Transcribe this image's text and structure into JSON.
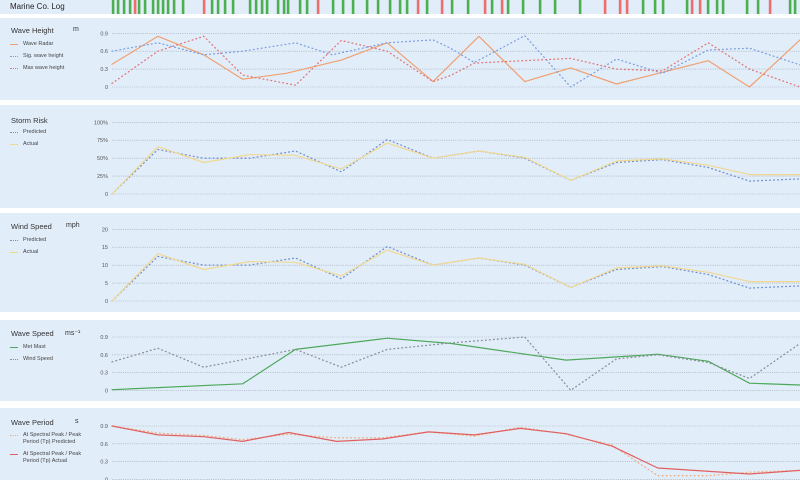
{
  "marine_log": {
    "label": "Marine Co. Log",
    "colors": {
      "ok": "#4caf50",
      "alert": "#ee6e6e"
    },
    "events": [
      {
        "pos": 113,
        "s": "ok"
      },
      {
        "pos": 118,
        "s": "ok"
      },
      {
        "pos": 124,
        "s": "ok"
      },
      {
        "pos": 130,
        "s": "ok"
      },
      {
        "pos": 135,
        "s": "alert"
      },
      {
        "pos": 139,
        "s": "ok"
      },
      {
        "pos": 145,
        "s": "ok"
      },
      {
        "pos": 153,
        "s": "ok"
      },
      {
        "pos": 158,
        "s": "ok"
      },
      {
        "pos": 163,
        "s": "ok"
      },
      {
        "pos": 168,
        "s": "ok"
      },
      {
        "pos": 174,
        "s": "ok"
      },
      {
        "pos": 183,
        "s": "ok"
      },
      {
        "pos": 204,
        "s": "alert"
      },
      {
        "pos": 212,
        "s": "ok"
      },
      {
        "pos": 218,
        "s": "ok"
      },
      {
        "pos": 225,
        "s": "ok"
      },
      {
        "pos": 233,
        "s": "ok"
      },
      {
        "pos": 250,
        "s": "ok"
      },
      {
        "pos": 256,
        "s": "ok"
      },
      {
        "pos": 262,
        "s": "ok"
      },
      {
        "pos": 267,
        "s": "ok"
      },
      {
        "pos": 278,
        "s": "ok"
      },
      {
        "pos": 284,
        "s": "ok"
      },
      {
        "pos": 288,
        "s": "ok"
      },
      {
        "pos": 300,
        "s": "ok"
      },
      {
        "pos": 307,
        "s": "ok"
      },
      {
        "pos": 318,
        "s": "alert"
      },
      {
        "pos": 333,
        "s": "ok"
      },
      {
        "pos": 343,
        "s": "ok"
      },
      {
        "pos": 353,
        "s": "ok"
      },
      {
        "pos": 367,
        "s": "ok"
      },
      {
        "pos": 378,
        "s": "ok"
      },
      {
        "pos": 390,
        "s": "ok"
      },
      {
        "pos": 400,
        "s": "ok"
      },
      {
        "pos": 407,
        "s": "ok"
      },
      {
        "pos": 418,
        "s": "alert"
      },
      {
        "pos": 427,
        "s": "ok"
      },
      {
        "pos": 442,
        "s": "alert"
      },
      {
        "pos": 452,
        "s": "ok"
      },
      {
        "pos": 468,
        "s": "ok"
      },
      {
        "pos": 485,
        "s": "alert"
      },
      {
        "pos": 492,
        "s": "ok"
      },
      {
        "pos": 502,
        "s": "alert"
      },
      {
        "pos": 508,
        "s": "ok"
      },
      {
        "pos": 523,
        "s": "ok"
      },
      {
        "pos": 540,
        "s": "ok"
      },
      {
        "pos": 555,
        "s": "ok"
      },
      {
        "pos": 580,
        "s": "ok"
      },
      {
        "pos": 605,
        "s": "alert"
      },
      {
        "pos": 620,
        "s": "alert"
      },
      {
        "pos": 627,
        "s": "alert"
      },
      {
        "pos": 643,
        "s": "ok"
      },
      {
        "pos": 655,
        "s": "ok"
      },
      {
        "pos": 663,
        "s": "ok"
      },
      {
        "pos": 687,
        "s": "ok"
      },
      {
        "pos": 692,
        "s": "alert"
      },
      {
        "pos": 700,
        "s": "alert"
      },
      {
        "pos": 708,
        "s": "ok"
      },
      {
        "pos": 717,
        "s": "ok"
      },
      {
        "pos": 723,
        "s": "ok"
      },
      {
        "pos": 747,
        "s": "ok"
      },
      {
        "pos": 758,
        "s": "ok"
      },
      {
        "pos": 770,
        "s": "alert"
      },
      {
        "pos": 790,
        "s": "ok"
      },
      {
        "pos": 795,
        "s": "ok"
      }
    ]
  },
  "chart_data": [
    {
      "id": "wave-height",
      "type": "line",
      "title": "Wave Height",
      "ylabel": "m",
      "ylim": [
        0,
        0.9
      ],
      "xlim": [
        0,
        15
      ],
      "yticks": [
        "0",
        "0.3",
        "0.6",
        "0.9"
      ],
      "ytick_values": [
        0,
        0.3,
        0.6,
        0.9
      ],
      "grid": true,
      "legend": "left",
      "series": [
        {
          "name": "Wave Radar",
          "color": "#f0a070",
          "dash": false,
          "points": [
            [
              0,
              0.38
            ],
            [
              1,
              0.85
            ],
            [
              2,
              0.54
            ],
            [
              2.85,
              0.13
            ],
            [
              3.8,
              0.23
            ],
            [
              5,
              0.45
            ],
            [
              6,
              0.74
            ],
            [
              7,
              0.09
            ],
            [
              8,
              0.85
            ],
            [
              9,
              0.09
            ],
            [
              10,
              0.32
            ],
            [
              11,
              0.05
            ],
            [
              13,
              0.44
            ],
            [
              13.9,
              0
            ],
            [
              15,
              0.79
            ]
          ]
        },
        {
          "name": "Sig. wave height",
          "color": "#7b9fe0",
          "dash": true,
          "points": [
            [
              0,
              0.6
            ],
            [
              1,
              0.74
            ],
            [
              2,
              0.54
            ],
            [
              2.85,
              0.6
            ],
            [
              4,
              0.74
            ],
            [
              4.8,
              0.54
            ],
            [
              6,
              0.74
            ],
            [
              7,
              0.79
            ],
            [
              7.4,
              0.64
            ],
            [
              7.9,
              0.41
            ],
            [
              9,
              0.86
            ],
            [
              10,
              0
            ],
            [
              11,
              0.47
            ],
            [
              12,
              0.23
            ],
            [
              13,
              0.62
            ],
            [
              13.9,
              0.65
            ],
            [
              15,
              0.37
            ]
          ]
        },
        {
          "name": "Max wave height",
          "color": "#e07878",
          "dash": true,
          "points": [
            [
              0,
              0.06
            ],
            [
              1,
              0.6
            ],
            [
              2,
              0.85
            ],
            [
              2.85,
              0.2
            ],
            [
              4,
              0.03
            ],
            [
              5,
              0.78
            ],
            [
              6,
              0.6
            ],
            [
              7,
              0.09
            ],
            [
              7.4,
              0.2
            ],
            [
              7.9,
              0.4
            ],
            [
              10,
              0.48
            ],
            [
              11,
              0.3
            ],
            [
              12,
              0.27
            ],
            [
              13,
              0.74
            ],
            [
              13.9,
              0.3
            ],
            [
              15,
              0
            ]
          ]
        }
      ]
    },
    {
      "id": "storm-risk",
      "type": "line",
      "title": "Storm Risk",
      "ylabel": "",
      "ylim": [
        0,
        100
      ],
      "xlim": [
        0,
        15
      ],
      "yticks": [
        "0",
        "25%",
        "50%",
        "75%",
        "100%"
      ],
      "ytick_values": [
        0,
        25,
        50,
        75,
        100
      ],
      "grid": true,
      "legend": "left",
      "series": [
        {
          "name": "Predicted",
          "color": "#7090d0",
          "dash": true,
          "points": [
            [
              0,
              0
            ],
            [
              1,
              62
            ],
            [
              2,
              50
            ],
            [
              3,
              50
            ],
            [
              4,
              60
            ],
            [
              5,
              31
            ],
            [
              6,
              76
            ],
            [
              7,
              50
            ],
            [
              8,
              60
            ],
            [
              9,
              50
            ],
            [
              10,
              19
            ],
            [
              11,
              44
            ],
            [
              12,
              48
            ],
            [
              13,
              37
            ],
            [
              13.9,
              18
            ],
            [
              15,
              21
            ]
          ]
        },
        {
          "name": "Actual",
          "color": "#f0d890",
          "dash": false,
          "points": [
            [
              0,
              0
            ],
            [
              1,
              66
            ],
            [
              2,
              44
            ],
            [
              3,
              55
            ],
            [
              4,
              54
            ],
            [
              5,
              35
            ],
            [
              6,
              71
            ],
            [
              7,
              50
            ],
            [
              8,
              60
            ],
            [
              9,
              51
            ],
            [
              10,
              19
            ],
            [
              11,
              46
            ],
            [
              12,
              49
            ],
            [
              13,
              40
            ],
            [
              13.9,
              27
            ],
            [
              15,
              27
            ]
          ]
        }
      ]
    },
    {
      "id": "wind-speed",
      "type": "line",
      "title": "Wind Speed",
      "ylabel": "mph",
      "ylim": [
        0,
        20
      ],
      "xlim": [
        0,
        15
      ],
      "yticks": [
        "0",
        "5",
        "10",
        "15",
        "20"
      ],
      "ytick_values": [
        0,
        5,
        10,
        15,
        20
      ],
      "grid": true,
      "legend": "left",
      "series": [
        {
          "name": "Predicted",
          "color": "#7090d0",
          "dash": true,
          "points": [
            [
              0,
              0
            ],
            [
              1,
              12.4
            ],
            [
              2,
              10
            ],
            [
              3,
              10
            ],
            [
              4,
              12
            ],
            [
              5,
              6.2
            ],
            [
              6,
              15.2
            ],
            [
              7,
              10
            ],
            [
              8,
              12
            ],
            [
              9,
              10
            ],
            [
              10,
              3.8
            ],
            [
              11,
              8.8
            ],
            [
              12,
              9.6
            ],
            [
              13,
              7.4
            ],
            [
              13.9,
              3.6
            ],
            [
              15,
              4.2
            ]
          ]
        },
        {
          "name": "Actual",
          "color": "#f0d890",
          "dash": false,
          "points": [
            [
              0,
              0
            ],
            [
              1,
              13.2
            ],
            [
              2,
              8.8
            ],
            [
              3,
              11
            ],
            [
              4,
              10.8
            ],
            [
              5,
              7
            ],
            [
              6,
              14.2
            ],
            [
              7,
              10
            ],
            [
              8,
              12
            ],
            [
              9,
              10.2
            ],
            [
              10,
              3.8
            ],
            [
              11,
              9.2
            ],
            [
              12,
              9.8
            ],
            [
              13,
              8
            ],
            [
              13.9,
              5.4
            ],
            [
              15,
              5.4
            ]
          ]
        }
      ]
    },
    {
      "id": "wave-speed",
      "type": "line",
      "title": "Wave Speed",
      "ylabel": "ms⁻¹",
      "ylim": [
        0,
        0.9
      ],
      "xlim": [
        0,
        15
      ],
      "yticks": [
        "0",
        "0.3",
        "0.6",
        "0.9"
      ],
      "ytick_values": [
        0,
        0.3,
        0.6,
        0.9
      ],
      "grid": true,
      "legend": "left",
      "series": [
        {
          "name": "Met Mast",
          "color": "#4ea85c",
          "dash": false,
          "points": [
            [
              0,
              0.01
            ],
            [
              2.85,
              0.11
            ],
            [
              4,
              0.69
            ],
            [
              6,
              0.88
            ],
            [
              7.4,
              0.79
            ],
            [
              9.9,
              0.51
            ],
            [
              11.9,
              0.61
            ],
            [
              13,
              0.49
            ],
            [
              13.9,
              0.12
            ],
            [
              15,
              0.09
            ]
          ]
        },
        {
          "name": "Wind Speed",
          "color": "#8a8f99",
          "dash": true,
          "points": [
            [
              0,
              0.48
            ],
            [
              1,
              0.71
            ],
            [
              2,
              0.39
            ],
            [
              4,
              0.69
            ],
            [
              5,
              0.39
            ],
            [
              6,
              0.69
            ],
            [
              7.4,
              0.8
            ],
            [
              9,
              0.9
            ],
            [
              10,
              0
            ],
            [
              11,
              0.53
            ],
            [
              11.9,
              0.6
            ],
            [
              13,
              0.47
            ],
            [
              13.9,
              0.2
            ],
            [
              15,
              0.79
            ]
          ]
        }
      ]
    },
    {
      "id": "wave-period",
      "type": "line",
      "title": "Wave Period",
      "ylabel": "s",
      "ylim": [
        0,
        0.9
      ],
      "xlim": [
        0,
        15
      ],
      "yticks": [
        "0",
        "0.3",
        "0.6",
        "0.9"
      ],
      "ytick_values": [
        0,
        0.3,
        0.6,
        0.9
      ],
      "grid": true,
      "legend": "left",
      "series": [
        {
          "name": "At Spectral Peak / Peak Period  (Tp) Predicted",
          "color": "#f0b080",
          "dash": true,
          "points": [
            [
              0,
              0.9
            ],
            [
              1,
              0.78
            ],
            [
              2,
              0.74
            ],
            [
              2.85,
              0.67
            ],
            [
              3.85,
              0.76
            ],
            [
              4.9,
              0.7
            ],
            [
              5.9,
              0.7
            ],
            [
              6.9,
              0.8
            ],
            [
              7.9,
              0.73
            ],
            [
              8.9,
              0.88
            ],
            [
              9.9,
              0.76
            ],
            [
              10.9,
              0.58
            ],
            [
              11.9,
              0.06
            ],
            [
              13,
              0.06
            ],
            [
              13.9,
              0.12
            ],
            [
              15,
              0.15
            ]
          ]
        },
        {
          "name": "At Spectral Peak / Peak Period  (Tp) Actual",
          "color": "#e06060",
          "dash": false,
          "points": [
            [
              0,
              0.9
            ],
            [
              1,
              0.75
            ],
            [
              2,
              0.72
            ],
            [
              2.85,
              0.64
            ],
            [
              3.85,
              0.79
            ],
            [
              4.9,
              0.64
            ],
            [
              5.9,
              0.68
            ],
            [
              6.9,
              0.8
            ],
            [
              7.9,
              0.75
            ],
            [
              8.9,
              0.86
            ],
            [
              9.9,
              0.77
            ],
            [
              10.9,
              0.56
            ],
            [
              11.9,
              0.19
            ],
            [
              13.9,
              0.09
            ],
            [
              15,
              0.15
            ]
          ]
        }
      ]
    }
  ]
}
